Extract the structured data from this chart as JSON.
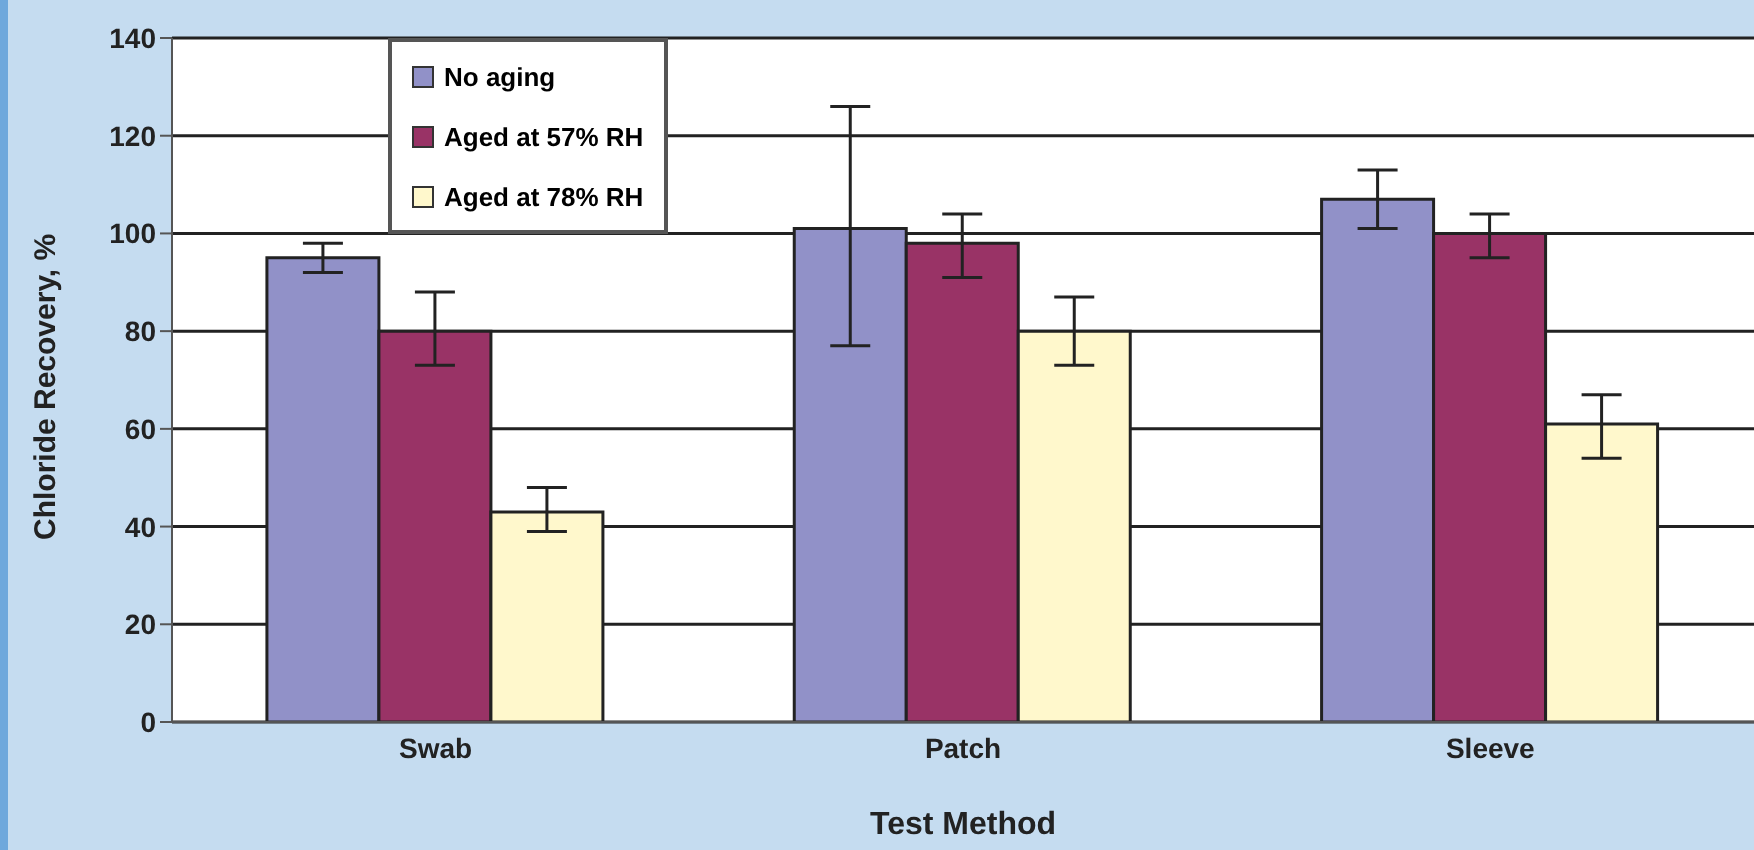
{
  "chart_data": {
    "type": "bar",
    "xlabel": "Test Method",
    "ylabel": "Chloride Recovery, %",
    "categories": [
      "Swab",
      "Patch",
      "Sleeve"
    ],
    "series": [
      {
        "name": "No aging",
        "color": "#9191c8",
        "values": [
          95,
          101,
          107
        ],
        "errors": [
          [
            92,
            98
          ],
          [
            77,
            126
          ],
          [
            101,
            113
          ]
        ]
      },
      {
        "name": "Aged at 57% RH",
        "color": "#993366",
        "values": [
          80,
          98,
          100
        ],
        "errors": [
          [
            73,
            88
          ],
          [
            91,
            104
          ],
          [
            95,
            104
          ]
        ]
      },
      {
        "name": "Aged at 78% RH",
        "color": "#fff8cc",
        "values": [
          43,
          80,
          61
        ],
        "errors": [
          [
            39,
            48
          ],
          [
            73,
            87
          ],
          [
            54,
            67
          ]
        ]
      }
    ],
    "ylim": [
      0,
      140
    ],
    "yticks": [
      0,
      20,
      40,
      60,
      80,
      100,
      120,
      140
    ],
    "grid": "y",
    "legend": "top"
  }
}
